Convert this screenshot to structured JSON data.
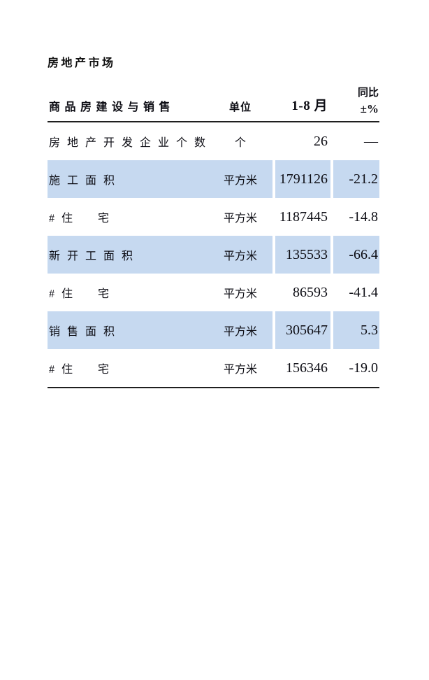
{
  "page": {
    "title": "房地产市场",
    "colors": {
      "highlight": "#c6d9f0",
      "rule": "#1f1f1f",
      "background": "#ffffff",
      "text": "#0d0d14"
    }
  },
  "table": {
    "header": {
      "col_label": "商品房建设与销售",
      "col_unit": "单位",
      "col_period": "1-8 月",
      "col_yoy_line1": "同比",
      "col_yoy_line2": "±%"
    },
    "rows": [
      {
        "label": "房地产开发企业个数",
        "unit": "个",
        "value": "26",
        "yoy": "—",
        "highlight": false
      },
      {
        "label": "施工面积",
        "unit": "平方米",
        "value": "1791126",
        "yoy": "-21.2",
        "highlight": true
      },
      {
        "label": "#住　宅",
        "unit": "平方米",
        "value": "1187445",
        "yoy": "-14.8",
        "highlight": false
      },
      {
        "label": "新开工面积",
        "unit": "平方米",
        "value": "135533",
        "yoy": "-66.4",
        "highlight": true
      },
      {
        "label": "#住　宅",
        "unit": "平方米",
        "value": "86593",
        "yoy": "-41.4",
        "highlight": false
      },
      {
        "label": "销售面积",
        "unit": "平方米",
        "value": "305647",
        "yoy": "5.3",
        "highlight": true
      },
      {
        "label": "#住　宅",
        "unit": "平方米",
        "value": "156346",
        "yoy": "-19.0",
        "highlight": false
      }
    ]
  }
}
